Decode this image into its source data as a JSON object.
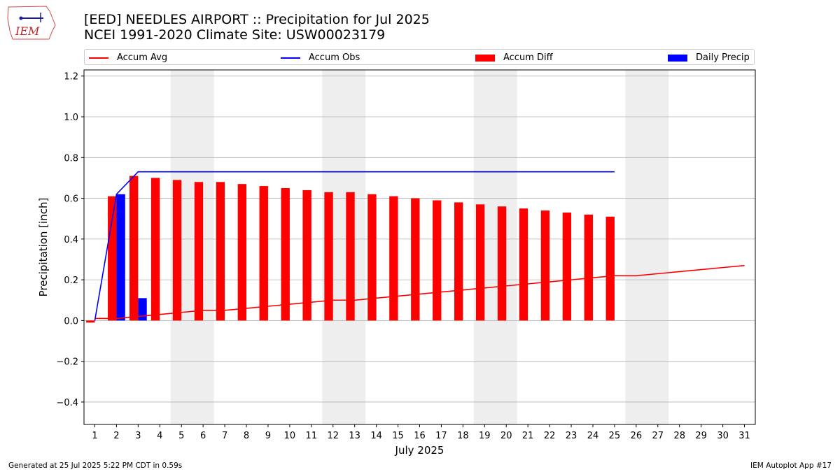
{
  "logo": {
    "text": "IEM"
  },
  "header": {
    "title": "[EED] NEEDLES AIRPORT :: Precipitation for Jul 2025",
    "subtitle": "NCEI 1991-2020 Climate Site: USW00023179"
  },
  "legend": [
    {
      "label": "Accum Avg",
      "kind": "line",
      "color": "#ff0000"
    },
    {
      "label": "Accum Obs",
      "kind": "line",
      "color": "#0000ff"
    },
    {
      "label": "Accum Diff",
      "kind": "box",
      "color": "#ff0000"
    },
    {
      "label": "Daily Precip",
      "kind": "box",
      "color": "#0000ff"
    }
  ],
  "footer": {
    "left": "Generated at 25 Jul 2025 5:22 PM CDT in 0.59s",
    "right": "IEM Autoplot App #17"
  },
  "chart_data": {
    "type": "bar",
    "xlabel": "July 2025",
    "ylabel": "Precipitation [inch]",
    "xlim": [
      0.5,
      31.5
    ],
    "ylim": [
      -0.51,
      1.23
    ],
    "yticks": [
      -0.4,
      -0.2,
      0.0,
      0.2,
      0.4,
      0.6,
      0.8,
      1.0,
      1.2
    ],
    "ytick_labels": [
      "−0.4",
      "−0.2",
      "0.0",
      "0.2",
      "0.4",
      "0.6",
      "0.8",
      "1.0",
      "1.2"
    ],
    "xticks": [
      1,
      2,
      3,
      4,
      5,
      6,
      7,
      8,
      9,
      10,
      11,
      12,
      13,
      14,
      15,
      16,
      17,
      18,
      19,
      20,
      21,
      22,
      23,
      24,
      25,
      26,
      27,
      28,
      29,
      30,
      31
    ],
    "weekend_bands": [
      [
        4.5,
        6.5
      ],
      [
        11.5,
        13.5
      ],
      [
        18.5,
        20.5
      ],
      [
        25.5,
        27.5
      ]
    ],
    "grid": "horizontal",
    "colors": {
      "avg": "#ff0000",
      "obs": "#0000ff",
      "diff": "#ff0000",
      "daily": "#0000ff",
      "band": "#eeeeee",
      "grid": "#b0b0b0"
    },
    "series": [
      {
        "name": "Accum Avg",
        "kind": "line",
        "x": [
          1,
          2,
          3,
          4,
          5,
          6,
          7,
          8,
          9,
          10,
          11,
          12,
          13,
          14,
          15,
          16,
          17,
          18,
          19,
          20,
          21,
          22,
          23,
          24,
          25,
          26,
          27,
          28,
          29,
          30,
          31
        ],
        "values": [
          0.01,
          0.01,
          0.02,
          0.03,
          0.04,
          0.05,
          0.05,
          0.06,
          0.07,
          0.08,
          0.09,
          0.1,
          0.1,
          0.11,
          0.12,
          0.13,
          0.14,
          0.15,
          0.16,
          0.17,
          0.18,
          0.19,
          0.2,
          0.21,
          0.22,
          0.22,
          0.23,
          0.24,
          0.25,
          0.26,
          0.27
        ]
      },
      {
        "name": "Accum Obs",
        "kind": "line",
        "x": [
          1,
          2,
          3,
          4,
          5,
          6,
          7,
          8,
          9,
          10,
          11,
          12,
          13,
          14,
          15,
          16,
          17,
          18,
          19,
          20,
          21,
          22,
          23,
          24,
          25
        ],
        "values": [
          0.0,
          0.62,
          0.73,
          0.73,
          0.73,
          0.73,
          0.73,
          0.73,
          0.73,
          0.73,
          0.73,
          0.73,
          0.73,
          0.73,
          0.73,
          0.73,
          0.73,
          0.73,
          0.73,
          0.73,
          0.73,
          0.73,
          0.73,
          0.73,
          0.73
        ]
      },
      {
        "name": "Accum Diff",
        "kind": "bar",
        "x": [
          1,
          2,
          3,
          4,
          5,
          6,
          7,
          8,
          9,
          10,
          11,
          12,
          13,
          14,
          15,
          16,
          17,
          18,
          19,
          20,
          21,
          22,
          23,
          24,
          25
        ],
        "values": [
          -0.01,
          0.61,
          0.71,
          0.7,
          0.69,
          0.68,
          0.68,
          0.67,
          0.66,
          0.65,
          0.64,
          0.63,
          0.63,
          0.62,
          0.61,
          0.6,
          0.59,
          0.58,
          0.57,
          0.56,
          0.55,
          0.54,
          0.53,
          0.52,
          0.51
        ]
      },
      {
        "name": "Daily Precip",
        "kind": "bar",
        "x": [
          2,
          3
        ],
        "values": [
          0.62,
          0.11
        ]
      }
    ]
  }
}
